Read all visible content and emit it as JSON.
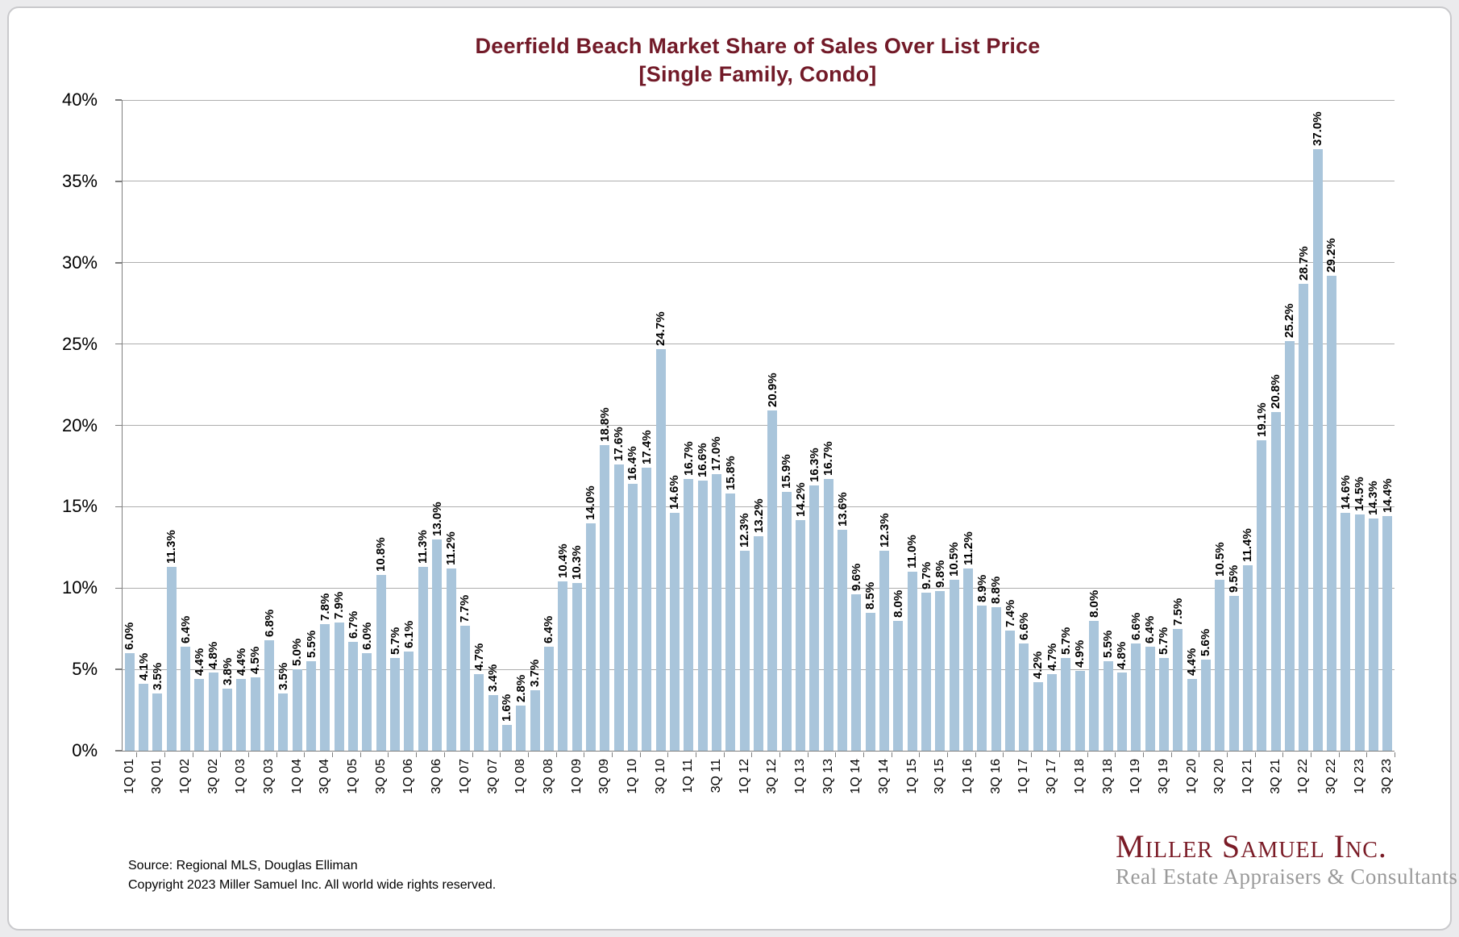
{
  "title": {
    "line1": "Deerfield Beach Market Share of Sales Over List Price",
    "line2": "[Single Family, Condo]"
  },
  "chart_data": {
    "type": "bar",
    "title": "Deerfield Beach Market Share of Sales Over List Price",
    "subtitle": "[Single Family, Condo]",
    "ylabel": "",
    "xlabel": "",
    "unit": "%",
    "ylim": [
      0,
      40
    ],
    "grid": true,
    "y_tick_labels": [
      "0%",
      "5%",
      "10%",
      "15%",
      "20%",
      "25%",
      "30%",
      "35%",
      "40%"
    ],
    "x_tick_labels": [
      "1Q 01",
      "3Q 01",
      "1Q 02",
      "3Q 02",
      "1Q 03",
      "3Q 03",
      "1Q 04",
      "3Q 04",
      "1Q 05",
      "3Q 05",
      "1Q 06",
      "3Q 06",
      "1Q 07",
      "3Q 07",
      "1Q 08",
      "3Q 08",
      "1Q 09",
      "3Q 09",
      "1Q 10",
      "3Q 10",
      "1Q 11",
      "3Q 11",
      "1Q 12",
      "3Q 12",
      "1Q 13",
      "3Q 13",
      "1Q 14",
      "3Q 14",
      "1Q 15",
      "3Q 15",
      "1Q 16",
      "3Q 16",
      "1Q 17",
      "3Q 17",
      "1Q 18",
      "3Q 18",
      "1Q 19",
      "3Q 19",
      "1Q 20",
      "3Q 20",
      "1Q 21",
      "3Q 21",
      "1Q 22",
      "3Q 22",
      "1Q 23",
      "3Q 23"
    ],
    "x_tick_every_n_bars": 2,
    "values": [
      6.0,
      4.1,
      3.5,
      11.3,
      6.4,
      4.4,
      4.8,
      3.8,
      4.4,
      4.5,
      6.8,
      3.5,
      5.0,
      5.5,
      7.8,
      7.9,
      6.7,
      6.0,
      10.8,
      5.7,
      6.1,
      11.3,
      13.0,
      11.2,
      7.7,
      4.7,
      3.4,
      1.6,
      2.8,
      3.7,
      6.4,
      10.4,
      10.3,
      14.0,
      18.8,
      17.6,
      16.4,
      17.4,
      24.7,
      14.6,
      16.7,
      16.6,
      17.0,
      15.8,
      12.3,
      13.2,
      20.9,
      15.9,
      14.2,
      16.3,
      16.7,
      13.6,
      9.6,
      8.5,
      12.3,
      8.0,
      11.0,
      9.7,
      9.8,
      10.5,
      11.2,
      8.9,
      8.8,
      7.4,
      6.6,
      4.2,
      4.7,
      5.7,
      4.9,
      8.0,
      5.5,
      4.8,
      6.6,
      6.4,
      5.7,
      7.5,
      4.4,
      5.6,
      10.5,
      9.5,
      11.4,
      19.1,
      20.8,
      25.2,
      28.7,
      37.0,
      29.2,
      14.6,
      14.5,
      14.3,
      14.4
    ],
    "data_label_format": "0.0%",
    "bar_color": "#a9c5db",
    "legend": null
  },
  "footer": {
    "source": "Source: Regional MLS, Douglas Elliman",
    "copyright": "Copyright 2023 Miller Samuel Inc.  All world wide rights reserved."
  },
  "logo": {
    "name": "Miller Samuel Inc.",
    "tagline": "Real Estate Appraisers & Consultants"
  },
  "colors": {
    "title": "#721a28",
    "bar": "#a9c5db",
    "gridline": "#aeaeae",
    "axis": "#7f7f7f",
    "logo_maroon": "#7a1b26",
    "logo_gray": "#9a9a9a",
    "panel_background": "#ffffff",
    "page_background": "#ebebed"
  }
}
